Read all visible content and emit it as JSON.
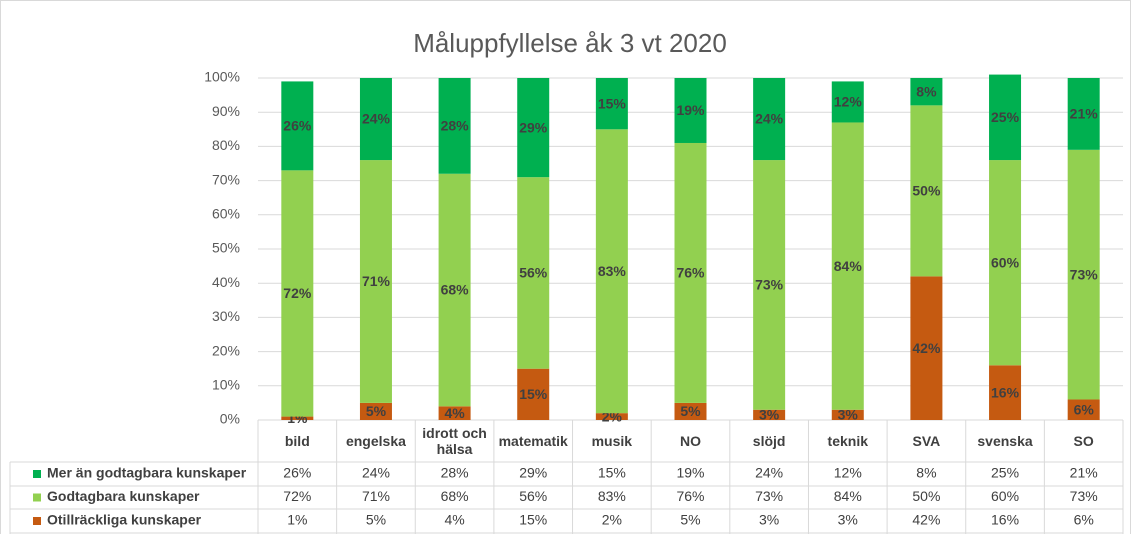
{
  "chart_data": {
    "type": "stacked_bar",
    "title": "Måluppfyllelse åk 3 vt 2020",
    "categories": [
      "bild",
      "engelska",
      "idrott och hälsa",
      "matematik",
      "musik",
      "NO",
      "slöjd",
      "teknik",
      "SVA",
      "svenska",
      "SO"
    ],
    "series": [
      {
        "name": "Mer än godtagbara kunskaper",
        "color": "#00b050",
        "values": [
          26,
          24,
          28,
          29,
          15,
          19,
          24,
          12,
          8,
          25,
          21
        ],
        "value_labels": [
          "26%",
          "24%",
          "28%",
          "29%",
          "15%",
          "19%",
          "24%",
          "12%",
          "8%",
          "25%",
          "21%"
        ]
      },
      {
        "name": "Godtagbara kunskaper",
        "color": "#92d050",
        "values": [
          72,
          71,
          68,
          56,
          83,
          76,
          73,
          84,
          50,
          60,
          73
        ],
        "value_labels": [
          "72%",
          "71%",
          "68%",
          "56%",
          "83%",
          "76%",
          "73%",
          "84%",
          "50%",
          "60%",
          "73%"
        ]
      },
      {
        "name": "Otillräckliga kunskaper",
        "color": "#c55a11",
        "values": [
          1,
          5,
          4,
          15,
          2,
          5,
          3,
          3,
          42,
          16,
          6
        ],
        "value_labels": [
          "1%",
          "5%",
          "4%",
          "15%",
          "2%",
          "5%",
          "3%",
          "3%",
          "42%",
          "16%",
          "6%"
        ]
      }
    ],
    "ylim": [
      0,
      100
    ],
    "yticks": [
      {
        "value": 0,
        "label": "0%"
      },
      {
        "value": 10,
        "label": "10%"
      },
      {
        "value": 20,
        "label": "20%"
      },
      {
        "value": 30,
        "label": "30%"
      },
      {
        "value": 40,
        "label": "40%"
      },
      {
        "value": 50,
        "label": "50%"
      },
      {
        "value": 60,
        "label": "60%"
      },
      {
        "value": 70,
        "label": "70%"
      },
      {
        "value": 80,
        "label": "80%"
      },
      {
        "value": 90,
        "label": "90%"
      },
      {
        "value": 100,
        "label": "100%"
      }
    ]
  }
}
